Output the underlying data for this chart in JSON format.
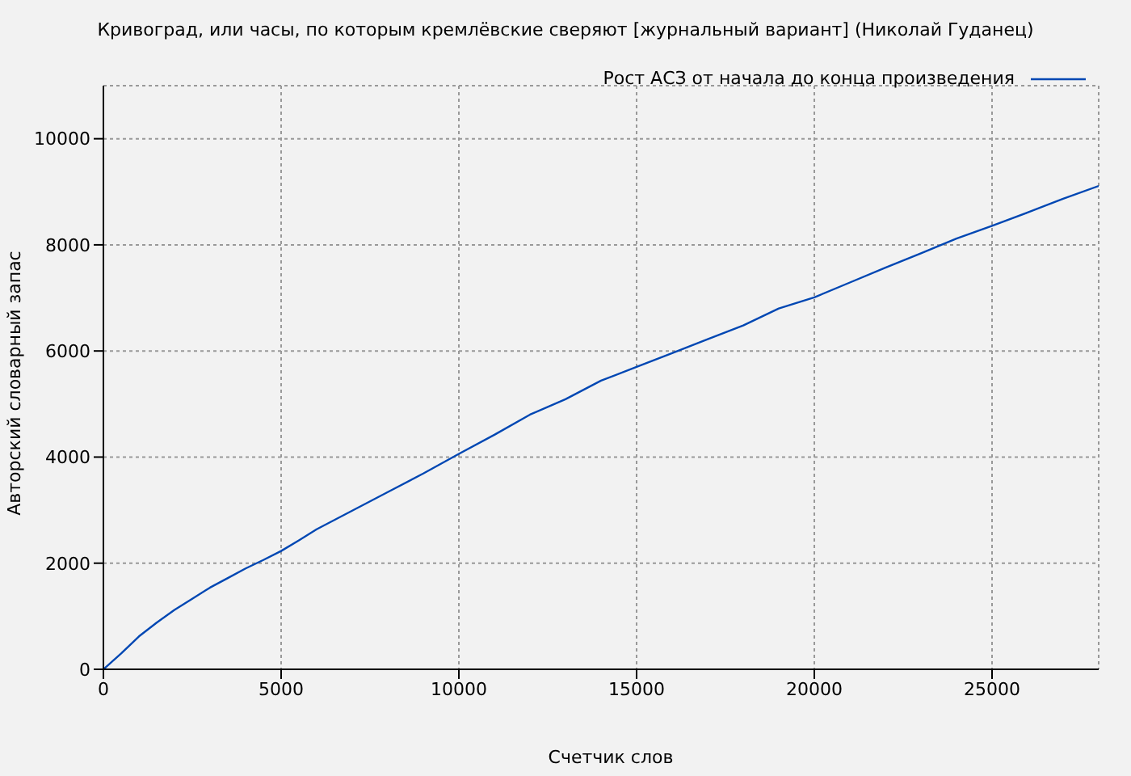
{
  "chart_data": {
    "type": "line",
    "title": "Кривоград, или часы, по которым кремлёвские сверяют [журнальный вариант] (Николай Гуданец)",
    "xlabel": "Счетчик слов",
    "ylabel": "Авторский словарный запас",
    "x": [
      0,
      500,
      1000,
      1500,
      2000,
      2500,
      3000,
      3500,
      4000,
      4500,
      5000,
      5500,
      6000,
      7000,
      8000,
      9000,
      10000,
      11000,
      12000,
      13000,
      14000,
      15000,
      16000,
      17000,
      18000,
      18500,
      19000,
      20000,
      21000,
      22000,
      23000,
      24000,
      25000,
      26000,
      27000,
      28000
    ],
    "series": [
      {
        "name": "Рост АСЗ от начала до конца произведения",
        "color": "#0047b3",
        "values": [
          0,
          300,
          620,
          880,
          1120,
          1330,
          1540,
          1720,
          1900,
          2060,
          2230,
          2430,
          2640,
          2990,
          3340,
          3690,
          4060,
          4420,
          4800,
          5090,
          5440,
          5700,
          5960,
          6220,
          6480,
          6640,
          6800,
          7010,
          7290,
          7570,
          7840,
          8120,
          8360,
          8610,
          8870,
          9110
        ]
      }
    ],
    "xlim": [
      0,
      28000
    ],
    "xticks": [
      0,
      5000,
      10000,
      15000,
      20000,
      25000
    ],
    "ylim": [
      0,
      11000
    ],
    "yticks": [
      0,
      2000,
      4000,
      6000,
      8000,
      10000
    ],
    "grid": true,
    "legend": "top right",
    "marker": "none",
    "line_style": "solid"
  }
}
